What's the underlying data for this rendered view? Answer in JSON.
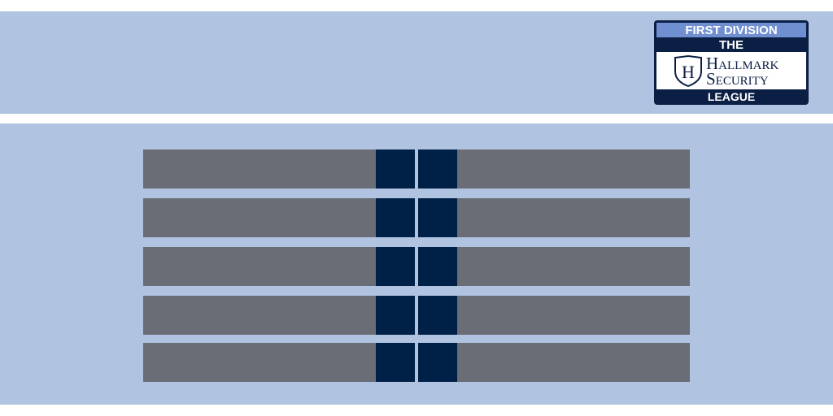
{
  "logo": {
    "division": "FIRST DIVISION",
    "prefix": "THE",
    "shield_letter": "H",
    "name_lines": [
      "Hallmark",
      "Security"
    ],
    "suffix": "LEAGUE"
  }
}
